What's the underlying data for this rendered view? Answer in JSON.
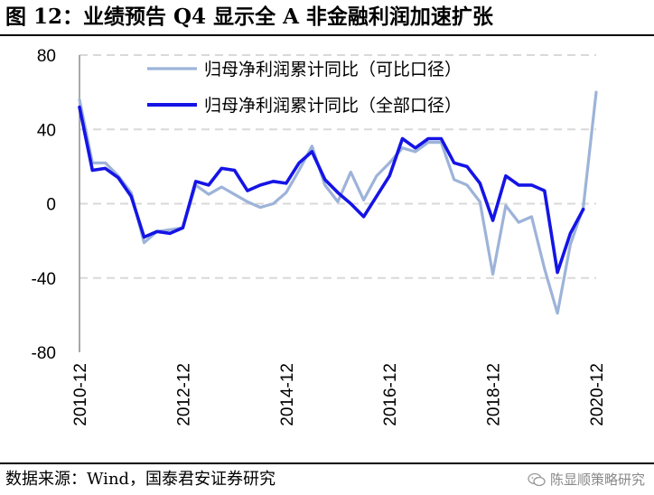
{
  "title": "图 12：业绩预告 Q4 显示全 A 非金融利润加速扩张",
  "source": "数据来源：Wind，国泰君安证券研究",
  "watermark": "陈显顺策略研究",
  "chart_data": {
    "type": "line",
    "title": "",
    "xlabel": "",
    "ylabel": "",
    "ylim": [
      -80,
      80
    ],
    "yticks": [
      80,
      40,
      0,
      -40,
      -80
    ],
    "xticks": [
      "2010-12",
      "2012-12",
      "2014-12",
      "2016-12",
      "2018-12",
      "2020-12"
    ],
    "x": [
      "2010-12",
      "2011-03",
      "2011-06",
      "2011-09",
      "2011-12",
      "2012-03",
      "2012-06",
      "2012-09",
      "2012-12",
      "2013-03",
      "2013-06",
      "2013-09",
      "2013-12",
      "2014-03",
      "2014-06",
      "2014-09",
      "2014-12",
      "2015-03",
      "2015-06",
      "2015-09",
      "2015-12",
      "2016-03",
      "2016-06",
      "2016-09",
      "2016-12",
      "2017-03",
      "2017-06",
      "2017-09",
      "2017-12",
      "2018-03",
      "2018-06",
      "2018-09",
      "2018-12",
      "2019-03",
      "2019-06",
      "2019-09",
      "2019-12",
      "2020-03",
      "2020-06",
      "2020-09",
      "2020-12"
    ],
    "grid": true,
    "legend_position": "top-center",
    "series": [
      {
        "name": "归母净利润累计同比（可比口径）",
        "color": "#9db3d9",
        "values": [
          56,
          22,
          22,
          15,
          6,
          -21,
          -15,
          -14,
          -13,
          10,
          5,
          9,
          5,
          1,
          -2,
          0,
          6,
          18,
          31,
          10,
          1,
          17,
          2,
          15,
          22,
          30,
          28,
          33,
          33,
          13,
          10,
          1,
          -38,
          -1,
          -10,
          -7,
          -35,
          -59,
          -22,
          -2,
          60
        ]
      },
      {
        "name": "归母净利润累计同比（全部口径）",
        "color": "#1414e6",
        "values": [
          52,
          18,
          19,
          14,
          4,
          -18,
          -15,
          -16,
          -13,
          12,
          10,
          19,
          18,
          7,
          10,
          12,
          11,
          22,
          28,
          13,
          6,
          0,
          -7,
          4,
          15,
          35,
          30,
          35,
          35,
          22,
          20,
          11,
          -9,
          15,
          10,
          10,
          7,
          -37,
          -16,
          -3,
          null
        ]
      }
    ]
  }
}
